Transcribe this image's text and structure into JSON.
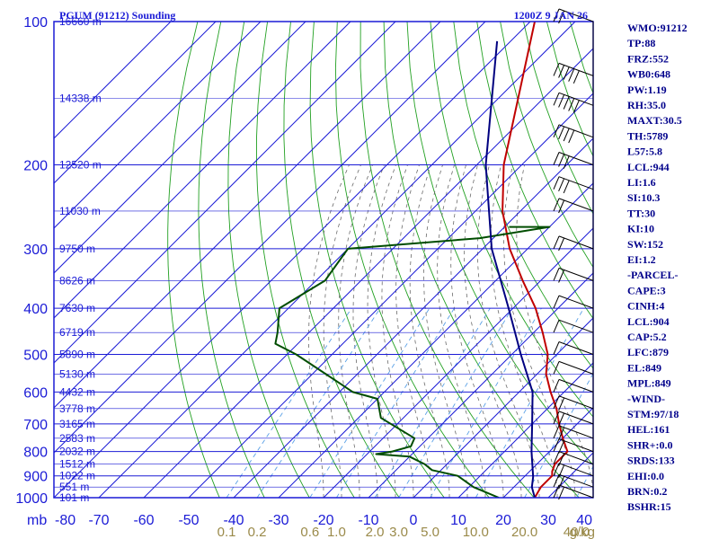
{
  "chart_data": {
    "type": "skew-t sounding",
    "title": "PGUM (91212) Sounding",
    "datetime": "1200Z  9 JAN 26",
    "pressure_unit_label": "mb",
    "mix_unit_label": "g/kg",
    "pressure_levels": [
      100,
      200,
      300,
      400,
      500,
      600,
      700,
      800,
      900,
      1000
    ],
    "pressure_range": [
      100,
      1000
    ],
    "temperature_ticks": [
      -80,
      -70,
      -60,
      -50,
      -40,
      -30,
      -20,
      -10,
      0,
      10,
      20,
      30,
      40
    ],
    "temperature_range_at_1000mb": [
      -80,
      40
    ],
    "mixing_ratio_labels": [
      "0.1",
      "0.2",
      "0.6",
      "1.0",
      "2.0",
      "3.0",
      "5.0",
      "10.0",
      "20.0",
      "40.0"
    ],
    "height_labels": [
      {
        "p": 100,
        "text": "16660 m"
      },
      {
        "p": 145,
        "text": "14338 m"
      },
      {
        "p": 200,
        "text": "12520 m"
      },
      {
        "p": 250,
        "text": "11030 m"
      },
      {
        "p": 300,
        "text": "9750 m"
      },
      {
        "p": 350,
        "text": "8626 m"
      },
      {
        "p": 400,
        "text": "7630 m"
      },
      {
        "p": 450,
        "text": "6719 m"
      },
      {
        "p": 500,
        "text": "5890 m"
      },
      {
        "p": 550,
        "text": "5130 m"
      },
      {
        "p": 600,
        "text": "4432 m"
      },
      {
        "p": 650,
        "text": "3778 m"
      },
      {
        "p": 700,
        "text": "3165 m"
      },
      {
        "p": 750,
        "text": "2583 m"
      },
      {
        "p": 800,
        "text": "2032 m"
      },
      {
        "p": 850,
        "text": "1512 m"
      },
      {
        "p": 900,
        "text": "1022 m"
      },
      {
        "p": 950,
        "text": "551 m"
      },
      {
        "p": 1000,
        "text": "101 m"
      }
    ],
    "series": [
      {
        "name": "Temperature",
        "color": "#c00000",
        "points": [
          [
            100,
            -79
          ],
          [
            200,
            -54
          ],
          [
            250,
            -44
          ],
          [
            300,
            -34
          ],
          [
            350,
            -24
          ],
          [
            400,
            -15
          ],
          [
            450,
            -8
          ],
          [
            500,
            -2
          ],
          [
            550,
            2
          ],
          [
            600,
            7
          ],
          [
            650,
            12
          ],
          [
            700,
            16
          ],
          [
            750,
            20
          ],
          [
            800,
            24
          ],
          [
            850,
            24
          ],
          [
            880,
            25
          ],
          [
            900,
            26
          ],
          [
            950,
            26
          ],
          [
            1000,
            27
          ]
        ]
      },
      {
        "name": "Dewpoint",
        "color": "#004d00",
        "points": [
          [
            270,
            -39
          ],
          [
            270,
            -30
          ],
          [
            285,
            -43
          ],
          [
            300,
            -70
          ],
          [
            350,
            -68
          ],
          [
            400,
            -72
          ],
          [
            450,
            -67
          ],
          [
            475,
            -65
          ],
          [
            500,
            -58
          ],
          [
            600,
            -37
          ],
          [
            620,
            -30
          ],
          [
            680,
            -25
          ],
          [
            750,
            -13
          ],
          [
            780,
            -12
          ],
          [
            800,
            -15
          ],
          [
            810,
            -18
          ],
          [
            815,
            -14
          ],
          [
            820,
            -10
          ],
          [
            850,
            -5
          ],
          [
            875,
            -2
          ],
          [
            900,
            5
          ],
          [
            950,
            11
          ],
          [
            1000,
            19
          ]
        ]
      },
      {
        "name": "Parcel",
        "color": "#000080",
        "points": [
          [
            110,
            -83
          ],
          [
            200,
            -58
          ],
          [
            250,
            -47
          ],
          [
            300,
            -38
          ],
          [
            400,
            -21
          ],
          [
            500,
            -8
          ],
          [
            600,
            3
          ],
          [
            700,
            10
          ],
          [
            800,
            16
          ],
          [
            904,
            22
          ],
          [
            950,
            24
          ],
          [
            1000,
            27
          ]
        ]
      }
    ],
    "indices": [
      "WMO:91212",
      "TP:88",
      "FRZ:552",
      "WB0:648",
      "PW:1.19",
      "RH:35.0",
      "MAXT:30.5",
      "TH:5789",
      "L57:5.8",
      "LCL:944",
      "LI:1.6",
      "SI:10.3",
      "TT:30",
      "KI:10",
      "SW:152",
      "EI:1.2",
      "-PARCEL-",
      "CAPE:3",
      "CINH:4",
      "LCL:904",
      "CAP:5.2",
      "LFC:879",
      "EL:849",
      "MPL:849",
      "-WIND-",
      "STM:97/18",
      "HEL:161",
      "SHR+:0.0",
      "SRDS:133",
      "EHI:0.0",
      "BRN:0.2",
      "BSHR:15"
    ],
    "wind_barbs": [
      {
        "p": 100,
        "spd": 20
      },
      {
        "p": 130,
        "spd": 45
      },
      {
        "p": 150,
        "spd": 50
      },
      {
        "p": 175,
        "spd": 40
      },
      {
        "p": 200,
        "spd": 30
      },
      {
        "p": 225,
        "spd": 25
      },
      {
        "p": 250,
        "spd": 20
      },
      {
        "p": 300,
        "spd": 15
      },
      {
        "p": 350,
        "spd": 15
      },
      {
        "p": 400,
        "spd": 10
      },
      {
        "p": 450,
        "spd": 10
      },
      {
        "p": 500,
        "spd": 10
      },
      {
        "p": 550,
        "spd": 10
      },
      {
        "p": 600,
        "spd": 10
      },
      {
        "p": 650,
        "spd": 15
      },
      {
        "p": 700,
        "spd": 15
      },
      {
        "p": 750,
        "spd": 15
      },
      {
        "p": 800,
        "spd": 15
      },
      {
        "p": 850,
        "spd": 20
      },
      {
        "p": 900,
        "spd": 20
      },
      {
        "p": 950,
        "spd": 20
      },
      {
        "p": 1000,
        "spd": 15
      }
    ]
  }
}
